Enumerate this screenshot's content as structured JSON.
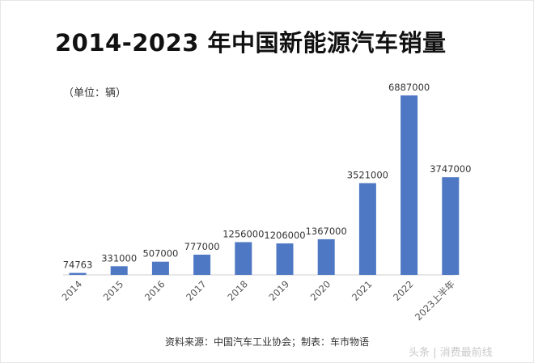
{
  "chart_data": {
    "type": "bar",
    "title": "2014-2023 年中国新能源汽车销量",
    "unit_label": "（单位：辆）",
    "categories": [
      "2014",
      "2015",
      "2016",
      "2017",
      "2018",
      "2019",
      "2020",
      "2021",
      "2022",
      "2023上半年"
    ],
    "values": [
      74763,
      331000,
      507000,
      777000,
      1256000,
      1206000,
      1367000,
      3521000,
      6887000,
      3747000
    ],
    "value_labels": [
      "74763",
      "331000",
      "507000",
      "777000",
      "1256000",
      "1206000",
      "1367000",
      "3521000",
      "6887000",
      "3747000"
    ],
    "ylim": [
      0,
      6887000
    ],
    "grid": false,
    "legend": "none",
    "bar_color": "#4f78c4"
  },
  "source_text": "资料来源：中国汽车工业协会；制表：车市物语",
  "watermark_text": "头条 | 消费最前线"
}
